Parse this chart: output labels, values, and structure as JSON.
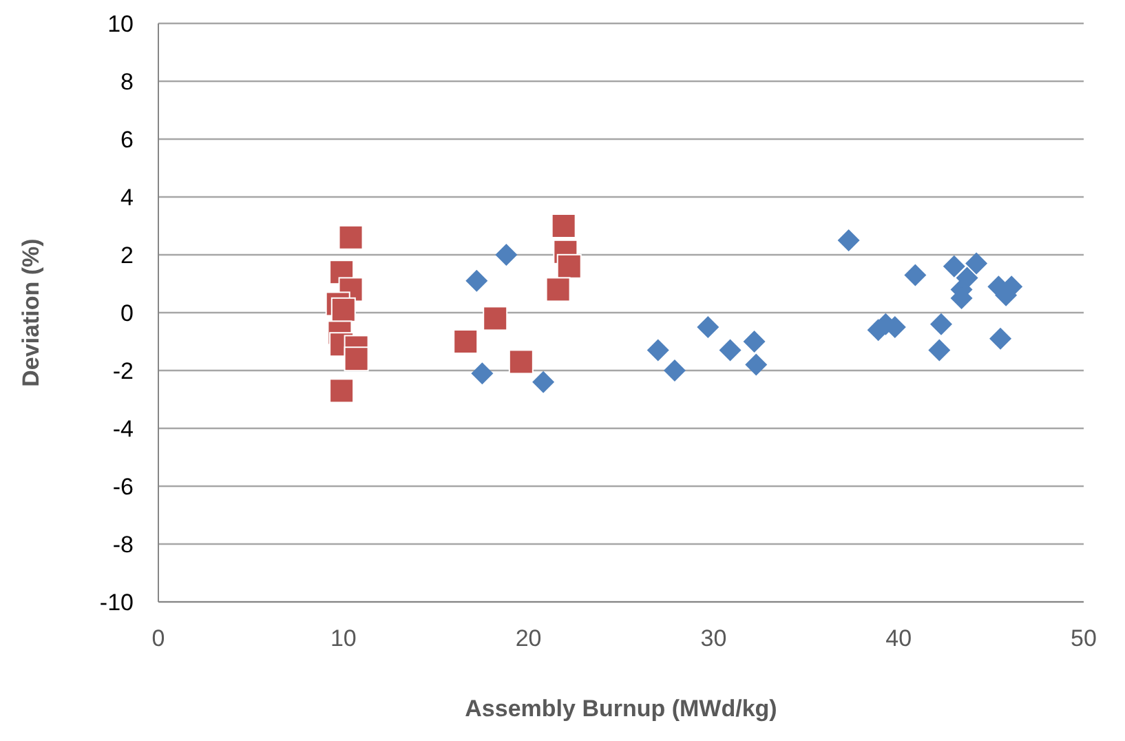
{
  "chart_data": {
    "type": "scatter",
    "xlabel": "Assembly Burnup (MWd/kg)",
    "ylabel": "Deviation (%)",
    "xlim": [
      0,
      50
    ],
    "xticks": [
      0,
      10,
      20,
      30,
      40,
      50
    ],
    "ylim": [
      -10,
      10
    ],
    "yticks": [
      -10,
      -8,
      -6,
      -4,
      -2,
      0,
      2,
      4,
      6,
      8,
      10
    ],
    "grid": "y",
    "legend": false,
    "series": [
      {
        "color": "#4f81bd",
        "marker": "diamond",
        "x": [
          18.8,
          17.2,
          17.5,
          20.8,
          27.0,
          27.9,
          29.7,
          30.9,
          32.2,
          32.3,
          37.3,
          38.9,
          39.3,
          39.8,
          40.9,
          42.3,
          42.2,
          43.0,
          44.2,
          43.7,
          43.4,
          43.4,
          45.4,
          46.1,
          45.8,
          45.5
        ],
        "values": [
          2.0,
          1.1,
          -2.1,
          -2.4,
          -1.3,
          -2.0,
          -0.5,
          -1.3,
          -1.0,
          -1.8,
          2.5,
          -0.6,
          -0.4,
          -0.5,
          1.3,
          -0.4,
          -1.3,
          1.6,
          1.7,
          1.2,
          0.8,
          0.5,
          0.9,
          0.9,
          0.6,
          -0.9
        ]
      },
      {
        "color": "#c0504d",
        "marker": "square",
        "x": [
          10.4,
          9.9,
          10.4,
          9.7,
          10.0,
          9.8,
          9.9,
          10.7,
          10.7,
          9.9,
          16.6,
          18.2,
          19.6,
          21.9,
          22.0,
          22.2,
          21.6
        ],
        "values": [
          2.6,
          1.4,
          0.8,
          0.3,
          0.1,
          -0.7,
          -1.1,
          -1.2,
          -1.6,
          -2.7,
          -1.0,
          -0.2,
          -1.7,
          3.0,
          2.1,
          1.6,
          0.8
        ]
      }
    ]
  }
}
